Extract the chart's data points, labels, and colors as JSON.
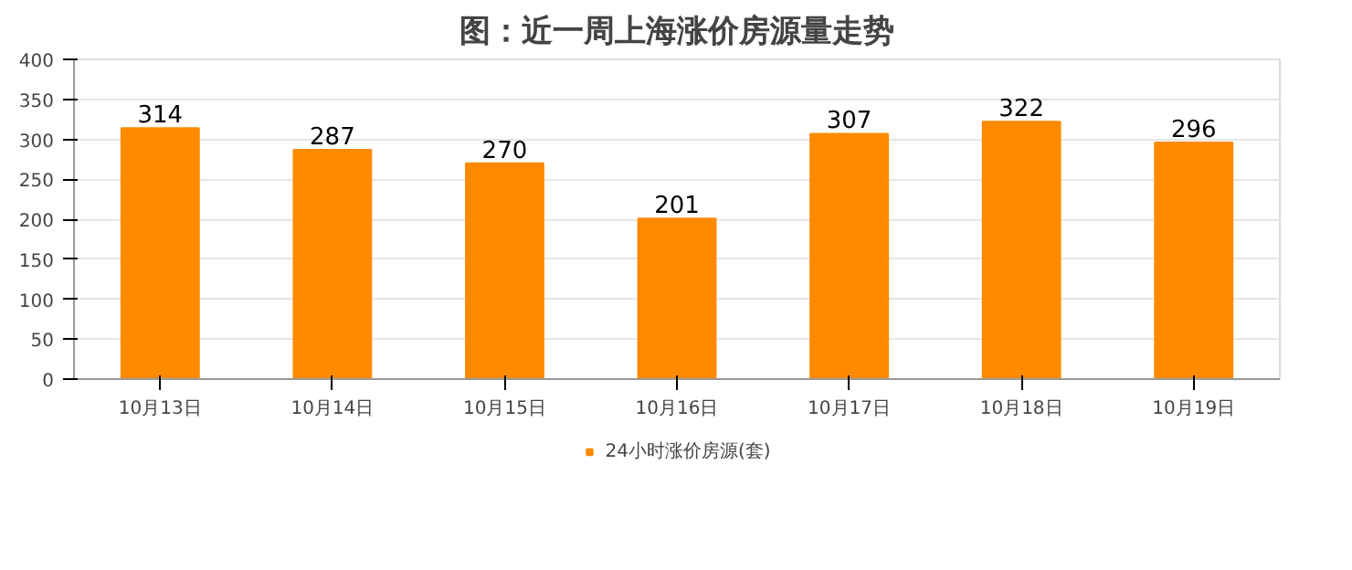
{
  "chart_data": {
    "type": "bar",
    "title": "图：近一周上海涨价房源量走势",
    "categories": [
      "10月13日",
      "10月14日",
      "10月15日",
      "10月16日",
      "10月17日",
      "10月18日",
      "10月19日"
    ],
    "series": [
      {
        "name": "24小时涨价房源(套)",
        "color": "#ff8a00",
        "values": [
          314,
          287,
          270,
          201,
          307,
          322,
          296
        ]
      }
    ],
    "ylim": [
      0,
      400
    ],
    "yticks": [
      0,
      50,
      100,
      150,
      200,
      250,
      300,
      350,
      400
    ],
    "grid": "y",
    "legend": "bottom",
    "data_labels": true
  }
}
